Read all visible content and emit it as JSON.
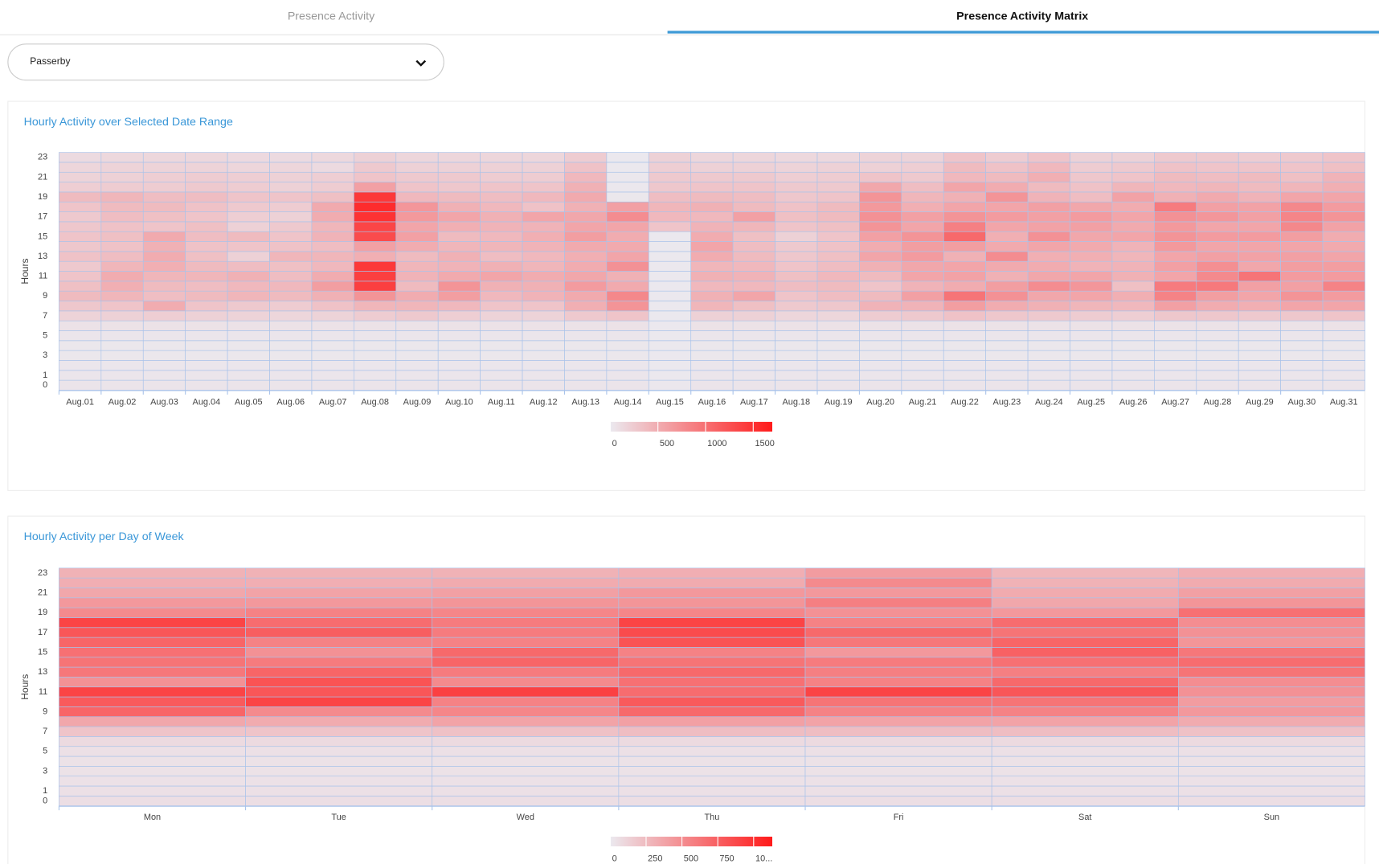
{
  "tabs": [
    "Presence Activity",
    "Presence Activity Matrix"
  ],
  "dropdown": "Passerby",
  "chart_data": [
    {
      "type": "heatmap",
      "title": "Hourly Activity over Selected Date Range",
      "ylabel": "Hours",
      "x": [
        "Aug.01",
        "Aug.02",
        "Aug.03",
        "Aug.04",
        "Aug.05",
        "Aug.06",
        "Aug.07",
        "Aug.08",
        "Aug.09",
        "Aug.10",
        "Aug.11",
        "Aug.12",
        "Aug.13",
        "Aug.14",
        "Aug.15",
        "Aug.16",
        "Aug.17",
        "Aug.18",
        "Aug.19",
        "Aug.20",
        "Aug.21",
        "Aug.22",
        "Aug.23",
        "Aug.24",
        "Aug.25",
        "Aug.26",
        "Aug.27",
        "Aug.28",
        "Aug.29",
        "Aug.30",
        "Aug.31"
      ],
      "y": [
        0,
        1,
        null,
        3,
        null,
        5,
        null,
        7,
        null,
        9,
        null,
        11,
        null,
        13,
        null,
        15,
        null,
        17,
        null,
        19,
        null,
        21,
        null,
        23
      ],
      "values": [
        [
          40,
          30,
          25,
          20,
          20,
          30,
          60,
          180,
          280,
          380,
          340,
          300,
          260,
          320,
          280,
          300,
          280,
          260,
          300,
          380,
          220,
          180,
          160,
          120
        ],
        [
          40,
          30,
          25,
          20,
          20,
          30,
          60,
          200,
          300,
          420,
          480,
          500,
          420,
          360,
          320,
          340,
          320,
          360,
          380,
          420,
          240,
          200,
          180,
          140
        ],
        [
          40,
          30,
          25,
          20,
          20,
          30,
          60,
          220,
          500,
          350,
          380,
          420,
          480,
          500,
          460,
          520,
          300,
          340,
          380,
          360,
          240,
          220,
          180,
          150
        ],
        [
          40,
          30,
          25,
          20,
          20,
          30,
          60,
          200,
          300,
          380,
          360,
          420,
          380,
          340,
          320,
          360,
          340,
          300,
          320,
          360,
          260,
          240,
          180,
          150
        ],
        [
          40,
          30,
          25,
          20,
          20,
          30,
          60,
          180,
          260,
          420,
          400,
          460,
          360,
          200,
          300,
          380,
          200,
          220,
          260,
          300,
          240,
          220,
          160,
          130
        ],
        [
          40,
          30,
          25,
          20,
          20,
          30,
          60,
          160,
          240,
          380,
          400,
          360,
          340,
          420,
          320,
          300,
          260,
          200,
          240,
          300,
          200,
          200,
          160,
          120
        ],
        [
          40,
          30,
          25,
          20,
          20,
          30,
          60,
          180,
          320,
          460,
          620,
          500,
          400,
          420,
          360,
          440,
          420,
          500,
          520,
          340,
          240,
          220,
          120,
          140
        ],
        [
          40,
          30,
          25,
          20,
          20,
          30,
          60,
          240,
          420,
          700,
          1400,
          1400,
          1450,
          480,
          600,
          1300,
          1350,
          1500,
          1550,
          1450,
          600,
          300,
          260,
          200
        ],
        [
          40,
          30,
          25,
          20,
          20,
          30,
          60,
          260,
          420,
          500,
          380,
          440,
          420,
          380,
          500,
          600,
          560,
          660,
          680,
          400,
          300,
          260,
          200,
          160
        ],
        [
          40,
          30,
          25,
          20,
          20,
          30,
          60,
          220,
          400,
          620,
          700,
          520,
          440,
          460,
          420,
          380,
          480,
          560,
          460,
          380,
          280,
          260,
          200,
          160
        ],
        [
          40,
          30,
          25,
          20,
          20,
          30,
          60,
          180,
          300,
          400,
          460,
          560,
          460,
          360,
          420,
          400,
          440,
          460,
          400,
          360,
          300,
          240,
          200,
          160
        ],
        [
          40,
          30,
          25,
          20,
          20,
          30,
          60,
          180,
          300,
          440,
          460,
          500,
          420,
          400,
          440,
          480,
          440,
          560,
          320,
          400,
          300,
          240,
          200,
          160
        ],
        [
          40,
          30,
          25,
          20,
          20,
          30,
          60,
          260,
          480,
          520,
          640,
          540,
          500,
          480,
          520,
          620,
          560,
          540,
          460,
          520,
          460,
          400,
          320,
          240
        ],
        [
          40,
          30,
          25,
          20,
          20,
          30,
          60,
          300,
          700,
          800,
          520,
          460,
          720,
          560,
          520,
          500,
          560,
          760,
          600,
          20,
          15,
          15,
          10,
          10
        ],
        [
          15,
          10,
          10,
          10,
          10,
          10,
          10,
          10,
          10,
          10,
          10,
          10,
          10,
          10,
          10,
          10,
          300,
          400,
          420,
          360,
          280,
          260,
          220,
          200
        ],
        [
          40,
          30,
          25,
          20,
          20,
          30,
          60,
          200,
          420,
          460,
          400,
          460,
          420,
          500,
          560,
          500,
          440,
          400,
          460,
          380,
          300,
          260,
          200,
          160
        ],
        [
          40,
          30,
          25,
          20,
          20,
          30,
          60,
          200,
          340,
          560,
          400,
          440,
          400,
          380,
          360,
          340,
          420,
          600,
          380,
          360,
          300,
          260,
          200,
          160
        ],
        [
          40,
          30,
          25,
          20,
          20,
          30,
          60,
          160,
          260,
          300,
          360,
          340,
          300,
          280,
          260,
          200,
          300,
          340,
          320,
          280,
          260,
          220,
          180,
          140
        ],
        [
          40,
          30,
          25,
          20,
          20,
          30,
          60,
          160,
          280,
          360,
          380,
          400,
          360,
          340,
          320,
          300,
          340,
          380,
          380,
          300,
          260,
          240,
          200,
          140
        ],
        [
          40,
          30,
          25,
          20,
          20,
          30,
          60,
          240,
          440,
          380,
          300,
          380,
          460,
          560,
          500,
          600,
          700,
          720,
          660,
          700,
          540,
          300,
          200,
          180
        ],
        [
          40,
          30,
          25,
          20,
          20,
          30,
          60,
          260,
          440,
          600,
          440,
          560,
          540,
          640,
          620,
          700,
          560,
          600,
          480,
          420,
          360,
          260,
          220,
          180
        ],
        [
          40,
          30,
          25,
          20,
          20,
          30,
          60,
          320,
          620,
          960,
          500,
          580,
          560,
          460,
          620,
          1050,
          860,
          700,
          560,
          460,
          560,
          400,
          380,
          300
        ],
        [
          40,
          30,
          25,
          20,
          20,
          30,
          60,
          280,
          500,
          720,
          620,
          460,
          520,
          760,
          520,
          480,
          560,
          640,
          560,
          700,
          500,
          380,
          320,
          240
        ],
        [
          40,
          30,
          25,
          20,
          20,
          30,
          60,
          260,
          460,
          540,
          760,
          540,
          500,
          480,
          560,
          720,
          580,
          600,
          600,
          440,
          380,
          480,
          400,
          300
        ],
        [
          40,
          30,
          25,
          20,
          20,
          30,
          60,
          240,
          420,
          560,
          680,
          560,
          440,
          480,
          520,
          540,
          600,
          640,
          540,
          360,
          320,
          280,
          240,
          200
        ],
        [
          40,
          30,
          25,
          20,
          20,
          30,
          60,
          220,
          400,
          480,
          340,
          460,
          440,
          420,
          440,
          560,
          520,
          560,
          500,
          580,
          420,
          300,
          260,
          200
        ],
        [
          40,
          30,
          25,
          20,
          20,
          30,
          60,
          280,
          600,
          840,
          900,
          560,
          600,
          560,
          660,
          700,
          660,
          720,
          900,
          460,
          400,
          380,
          320,
          260
        ],
        [
          40,
          30,
          25,
          20,
          20,
          30,
          60,
          280,
          500,
          620,
          920,
          780,
          740,
          600,
          560,
          640,
          560,
          680,
          600,
          520,
          420,
          360,
          300,
          260
        ],
        [
          40,
          30,
          25,
          20,
          20,
          30,
          60,
          260,
          480,
          560,
          600,
          960,
          540,
          580,
          560,
          640,
          560,
          600,
          580,
          440,
          380,
          380,
          300,
          240
        ],
        [
          40,
          30,
          25,
          20,
          20,
          30,
          60,
          280,
          560,
          700,
          600,
          640,
          620,
          600,
          560,
          620,
          800,
          820,
          800,
          560,
          420,
          340,
          300,
          260
        ],
        [
          40,
          30,
          25,
          20,
          20,
          30,
          60,
          300,
          560,
          640,
          840,
          640,
          620,
          560,
          520,
          500,
          580,
          700,
          640,
          560,
          480,
          440,
          340,
          300
        ]
      ],
      "zlim": [
        0,
        1700
      ],
      "zticks": [
        0,
        500,
        1000,
        1500
      ],
      "colors": [
        "#ebe9ef",
        "#ff1a1a"
      ]
    },
    {
      "type": "heatmap",
      "title": "Hourly Activity per Day of Week",
      "ylabel": "Hours",
      "x": [
        "Mon",
        "Tue",
        "Wed",
        "Thu",
        "Fri",
        "Sat",
        "Sun"
      ],
      "y": [
        0,
        1,
        null,
        3,
        null,
        5,
        null,
        7,
        null,
        9,
        null,
        11,
        null,
        13,
        null,
        15,
        null,
        17,
        null,
        19,
        null,
        21,
        null,
        23
      ],
      "values": [
        [
          60,
          50,
          45,
          40,
          40,
          50,
          80,
          200,
          360,
          720,
          780,
          900,
          480,
          620,
          640,
          660,
          720,
          800,
          900,
          520,
          440,
          360,
          320,
          300
        ],
        [
          60,
          50,
          45,
          40,
          40,
          50,
          80,
          200,
          340,
          520,
          900,
          800,
          820,
          720,
          600,
          480,
          560,
          760,
          680,
          560,
          440,
          380,
          320,
          300
        ],
        [
          60,
          50,
          45,
          40,
          40,
          50,
          80,
          220,
          380,
          540,
          560,
          920,
          520,
          600,
          720,
          700,
          560,
          600,
          600,
          540,
          460,
          400,
          340,
          300
        ],
        [
          60,
          50,
          45,
          40,
          40,
          50,
          80,
          240,
          400,
          700,
          780,
          680,
          660,
          700,
          640,
          560,
          820,
          860,
          900,
          540,
          460,
          440,
          340,
          320
        ],
        [
          60,
          50,
          45,
          40,
          40,
          50,
          80,
          240,
          380,
          560,
          640,
          900,
          560,
          580,
          600,
          440,
          620,
          700,
          560,
          480,
          580,
          440,
          520,
          420
        ],
        [
          60,
          50,
          45,
          40,
          40,
          50,
          80,
          240,
          380,
          560,
          640,
          800,
          700,
          580,
          660,
          740,
          720,
          640,
          680,
          440,
          360,
          340,
          300,
          280
        ],
        [
          60,
          50,
          45,
          40,
          40,
          50,
          80,
          220,
          340,
          440,
          420,
          480,
          500,
          640,
          680,
          620,
          460,
          480,
          500,
          660,
          460,
          400,
          340,
          320
        ]
      ],
      "zlim": [
        0,
        1130
      ],
      "zticks": [
        0,
        250,
        500,
        750,
        {
          "value": 1000,
          "label": "10..."
        }
      ],
      "colors": [
        "#ebe9ef",
        "#ff1a1a"
      ]
    }
  ]
}
